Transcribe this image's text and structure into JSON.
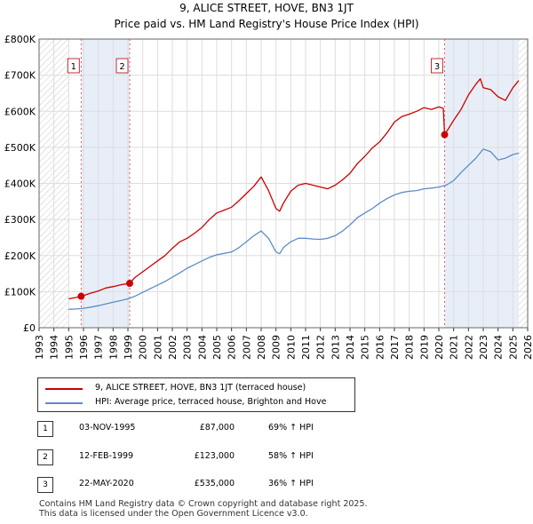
{
  "header": {
    "title": "9, ALICE STREET, HOVE, BN3 1JT",
    "subtitle": "Price paid vs. HM Land Registry's House Price Index (HPI)"
  },
  "colors": {
    "property": "#cc0000",
    "hpi": "#5b8cc8",
    "shade": "#e8eef8",
    "hatch": "#c8c8c8"
  },
  "chart_data": {
    "type": "line",
    "title": "9, ALICE STREET, HOVE, BN3 1JT",
    "subtitle": "Price paid vs. HM Land Registry's House Price Index (HPI)",
    "xlim": [
      1993,
      2026
    ],
    "ylim": [
      0,
      800000
    ],
    "y_ticks": [
      0,
      100000,
      200000,
      300000,
      400000,
      500000,
      600000,
      700000,
      800000
    ],
    "y_tick_labels": [
      "£0",
      "£100K",
      "£200K",
      "£300K",
      "£400K",
      "£500K",
      "£600K",
      "£700K",
      "£800K"
    ],
    "x_ticks": [
      1993,
      1994,
      1995,
      1996,
      1997,
      1998,
      1999,
      2000,
      2001,
      2002,
      2003,
      2004,
      2005,
      2006,
      2007,
      2008,
      2009,
      2010,
      2011,
      2012,
      2013,
      2014,
      2015,
      2016,
      2017,
      2018,
      2019,
      2020,
      2021,
      2022,
      2023,
      2024,
      2025,
      2026
    ],
    "hatched_ranges": [
      [
        1993,
        1995.0
      ],
      [
        2025.4,
        2026
      ]
    ],
    "shaded_ranges": [
      [
        1995.84,
        1999.12
      ],
      [
        2020.39,
        2025.4
      ]
    ],
    "series": [
      {
        "name": "9, ALICE STREET, HOVE, BN3 1JT (terraced house)",
        "color": "#cc0000",
        "x": [
          1995.0,
          1995.5,
          1995.84,
          1996.5,
          1997.0,
          1997.5,
          1998.0,
          1998.5,
          1999.12,
          1999.5,
          2000.0,
          2000.5,
          2001.0,
          2001.5,
          2002.0,
          2002.5,
          2003.0,
          2003.5,
          2004.0,
          2004.5,
          2005.0,
          2005.5,
          2006.0,
          2006.5,
          2007.0,
          2007.5,
          2008.0,
          2008.5,
          2009.0,
          2009.25,
          2009.5,
          2010.0,
          2010.5,
          2011.0,
          2011.5,
          2012.0,
          2012.5,
          2013.0,
          2013.5,
          2014.0,
          2014.5,
          2015.0,
          2015.5,
          2016.0,
          2016.5,
          2017.0,
          2017.5,
          2018.0,
          2018.5,
          2019.0,
          2019.5,
          2020.0,
          2020.3,
          2020.39,
          2020.7,
          2021.0,
          2021.5,
          2022.0,
          2022.5,
          2022.8,
          2023.0,
          2023.5,
          2024.0,
          2024.5,
          2025.0,
          2025.4
        ],
        "values": [
          80000,
          84000,
          87000,
          96000,
          102000,
          110000,
          114000,
          119000,
          123000,
          140000,
          155000,
          170000,
          185000,
          200000,
          220000,
          238000,
          248000,
          262000,
          278000,
          300000,
          318000,
          326000,
          334000,
          352000,
          372000,
          392000,
          418000,
          380000,
          330000,
          323000,
          345000,
          378000,
          395000,
          400000,
          395000,
          390000,
          385000,
          395000,
          410000,
          428000,
          455000,
          475000,
          498000,
          515000,
          540000,
          570000,
          585000,
          592000,
          600000,
          610000,
          605000,
          612000,
          608000,
          535000,
          555000,
          575000,
          605000,
          645000,
          675000,
          690000,
          665000,
          660000,
          640000,
          630000,
          665000,
          685000
        ]
      },
      {
        "name": "HPI: Average price, terraced house, Brighton and Hove",
        "color": "#5b8cc8",
        "x": [
          1995.0,
          1995.5,
          1996.0,
          1996.5,
          1997.0,
          1997.5,
          1998.0,
          1998.5,
          1999.0,
          1999.5,
          2000.0,
          2000.5,
          2001.0,
          2001.5,
          2002.0,
          2002.5,
          2003.0,
          2003.5,
          2004.0,
          2004.5,
          2005.0,
          2005.5,
          2006.0,
          2006.5,
          2007.0,
          2007.5,
          2008.0,
          2008.5,
          2009.0,
          2009.25,
          2009.5,
          2010.0,
          2010.5,
          2011.0,
          2011.5,
          2012.0,
          2012.5,
          2013.0,
          2013.5,
          2014.0,
          2014.5,
          2015.0,
          2015.5,
          2016.0,
          2016.5,
          2017.0,
          2017.5,
          2018.0,
          2018.5,
          2019.0,
          2019.5,
          2020.0,
          2020.5,
          2021.0,
          2021.5,
          2022.0,
          2022.5,
          2023.0,
          2023.5,
          2024.0,
          2024.5,
          2025.0,
          2025.4
        ],
        "values": [
          51000,
          52000,
          54000,
          57000,
          61000,
          66000,
          71000,
          75000,
          80000,
          88000,
          98000,
          108000,
          118000,
          128000,
          140000,
          152000,
          165000,
          175000,
          185000,
          195000,
          202000,
          206000,
          210000,
          222000,
          238000,
          255000,
          268000,
          248000,
          210000,
          205000,
          222000,
          238000,
          248000,
          248000,
          246000,
          245000,
          248000,
          255000,
          268000,
          285000,
          305000,
          318000,
          330000,
          345000,
          358000,
          368000,
          375000,
          378000,
          380000,
          385000,
          387000,
          390000,
          395000,
          408000,
          430000,
          450000,
          470000,
          495000,
          488000,
          465000,
          470000,
          480000,
          484000
        ]
      }
    ],
    "transactions": [
      {
        "label": "1",
        "x": 1995.84,
        "price": 87000
      },
      {
        "label": "2",
        "x": 1999.12,
        "price": 123000
      },
      {
        "label": "3",
        "x": 2020.39,
        "price": 535000
      }
    ]
  },
  "legend": {
    "property_label": "9, ALICE STREET, HOVE, BN3 1JT (terraced house)",
    "hpi_label": "HPI: Average price, terraced house, Brighton and Hove"
  },
  "transactions_table": [
    {
      "num": "1",
      "date": "03-NOV-1995",
      "price": "£87,000",
      "hpi": "69% ↑ HPI"
    },
    {
      "num": "2",
      "date": "12-FEB-1999",
      "price": "£123,000",
      "hpi": "58% ↑ HPI"
    },
    {
      "num": "3",
      "date": "22-MAY-2020",
      "price": "£535,000",
      "hpi": "36% ↑ HPI"
    }
  ],
  "footer": {
    "line1": "Contains HM Land Registry data © Crown copyright and database right 2025.",
    "line2": "This data is licensed under the Open Government Licence v3.0."
  }
}
